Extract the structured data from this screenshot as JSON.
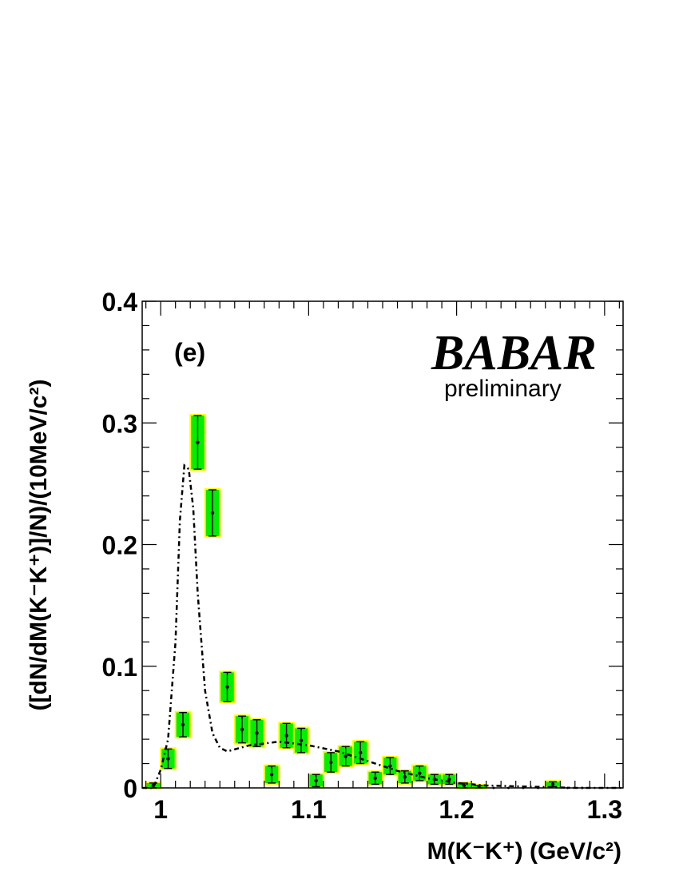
{
  "chart_data": {
    "type": "scatter",
    "panel_label": "(e)",
    "logo": {
      "text": "BABAR",
      "sub": "preliminary"
    },
    "xlabel": "M(K⁻K⁺) (GeV/c²)",
    "ylabel": "([dN/dM(K⁻K⁺)]/N)/(10MeV/c²)",
    "xlim": [
      0.9875,
      1.3125
    ],
    "ylim": [
      0,
      0.4
    ],
    "x_ticks": [
      1,
      1.1,
      1.2,
      1.3
    ],
    "x_tick_labels": [
      "1",
      "1.1",
      "1.2",
      "1.3"
    ],
    "y_ticks": [
      0,
      0.1,
      0.2,
      0.3,
      0.4
    ],
    "y_tick_labels": [
      "0",
      "0.1",
      "0.2",
      "0.3",
      "0.4"
    ],
    "colors": {
      "stat_band": "#00ee00",
      "syst_band": "#ffff00",
      "points": "#000000",
      "fit": "#000000"
    },
    "series": [
      {
        "x": [
          0.995,
          1.005,
          1.015,
          1.025,
          1.035,
          1.045,
          1.055,
          1.065,
          1.075,
          1.085,
          1.095,
          1.105,
          1.115,
          1.125,
          1.135,
          1.145,
          1.155,
          1.165,
          1.175,
          1.185,
          1.195,
          1.205,
          1.215,
          1.225,
          1.235,
          1.245,
          1.255,
          1.265,
          1.275,
          1.285
        ],
        "y": [
          0.002,
          0.024,
          0.052,
          0.284,
          0.226,
          0.083,
          0.048,
          0.045,
          0.011,
          0.043,
          0.039,
          0.006,
          0.021,
          0.026,
          0.029,
          0.008,
          0.018,
          0.009,
          0.012,
          0.007,
          0.007,
          0.002,
          0.001,
          0.0,
          0.0,
          0.0,
          0.0,
          0.003,
          0.0,
          0.0
        ],
        "err": [
          0.002,
          0.008,
          0.01,
          0.022,
          0.019,
          0.012,
          0.011,
          0.011,
          0.007,
          0.01,
          0.01,
          0.005,
          0.008,
          0.008,
          0.009,
          0.005,
          0.007,
          0.005,
          0.006,
          0.004,
          0.004,
          0.002,
          0.001,
          0.0,
          0.0,
          0.0,
          0.0,
          0.002,
          0.0,
          0.0
        ]
      }
    ],
    "fit_curve": {
      "x": [
        0.9875,
        0.995,
        1.0,
        1.005,
        1.01,
        1.013,
        1.016,
        1.019,
        1.022,
        1.025,
        1.03,
        1.035,
        1.04,
        1.045,
        1.06,
        1.08,
        1.1,
        1.12,
        1.14,
        1.16,
        1.18,
        1.2,
        1.22,
        1.25,
        1.28,
        1.3125
      ],
      "y": [
        0.0,
        0.0,
        0.015,
        0.04,
        0.12,
        0.22,
        0.265,
        0.262,
        0.23,
        0.16,
        0.08,
        0.045,
        0.033,
        0.03,
        0.035,
        0.038,
        0.035,
        0.03,
        0.022,
        0.014,
        0.008,
        0.004,
        0.002,
        0.001,
        0.0,
        0.0
      ]
    },
    "grid": false
  }
}
